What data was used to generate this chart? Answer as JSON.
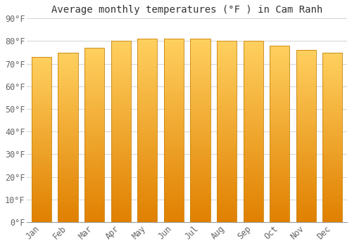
{
  "title": "Average monthly temperatures (°F ) in Cam Ranh",
  "months": [
    "Jan",
    "Feb",
    "Mar",
    "Apr",
    "May",
    "Jun",
    "Jul",
    "Aug",
    "Sep",
    "Oct",
    "Nov",
    "Dec"
  ],
  "values": [
    73,
    75,
    77,
    80,
    81,
    81,
    81,
    80,
    80,
    78,
    76,
    75
  ],
  "bar_color_center": "#FFB300",
  "bar_color_edge": "#E07800",
  "bar_edge_color": "#C07000",
  "background_color": "#FFFFFF",
  "ylim": [
    0,
    90
  ],
  "yticks": [
    0,
    10,
    20,
    30,
    40,
    50,
    60,
    70,
    80,
    90
  ],
  "title_fontsize": 10,
  "tick_fontsize": 8.5,
  "grid_color": "#CCCCCC",
  "bar_width": 0.75
}
